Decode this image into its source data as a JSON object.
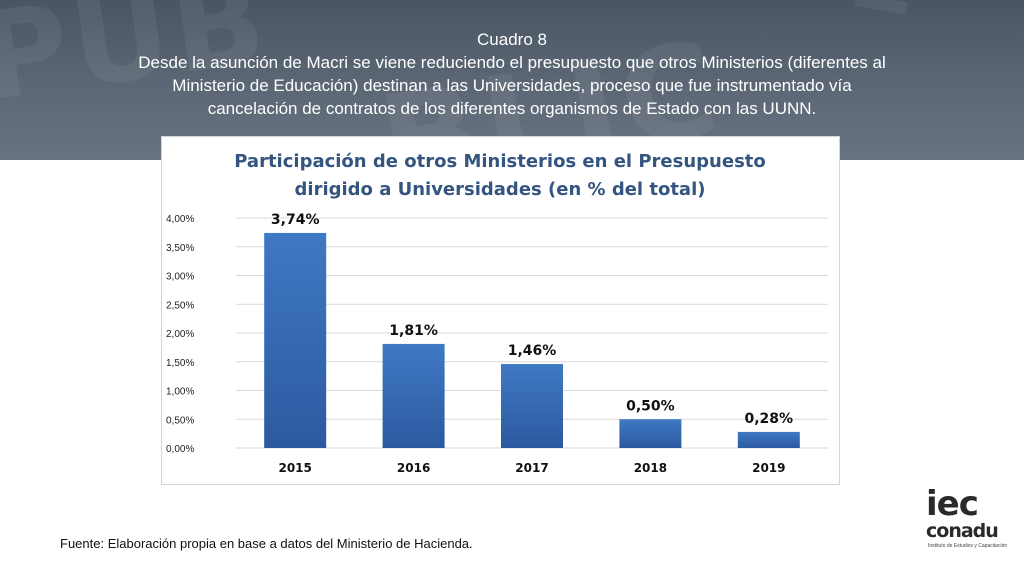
{
  "banner": {
    "line1": "Cuadro 8",
    "line2": "Desde la asunción de Macri se viene reduciendo el presupuesto que otros Ministerios (diferentes  al",
    "line3": "Ministerio de Educación) destinan  a las Universidades, proceso que fue instrumentado vía",
    "line4": "cancelación de contratos de los diferentes organismos de Estado con las UUNN."
  },
  "chart_data": {
    "type": "bar",
    "title_line1": "Participación de otros Ministerios en el Presupuesto",
    "title_line2": "dirigido a Universidades (en % del total)",
    "categories": [
      "2015",
      "2016",
      "2017",
      "2018",
      "2019"
    ],
    "values": [
      3.74,
      1.81,
      1.46,
      0.5,
      0.28
    ],
    "value_labels": [
      "3,74%",
      "1,81%",
      "1,46%",
      "0,50%",
      "0,28%"
    ],
    "ylim": [
      0,
      4
    ],
    "yticks": [
      0,
      0.5,
      1,
      1.5,
      2,
      2.5,
      3,
      3.5,
      4
    ],
    "ytick_labels": [
      "0,00%",
      "0,50%",
      "1,00%",
      "1,50%",
      "2,00%",
      "2,50%",
      "3,00%",
      "3,50%",
      "4,00%"
    ],
    "grid": true,
    "legend": "none",
    "bar_color": "#3f78c4",
    "bar_color_dark": "#2c5aa0",
    "title_color": "#34557f"
  },
  "footer": {
    "source": "Fuente: Elaboración propia en base a datos del Ministerio de Hacienda."
  },
  "logo": {
    "top": "iec",
    "bottom": "conadu",
    "sub": "Instituto de Estudios y Capacitación"
  }
}
